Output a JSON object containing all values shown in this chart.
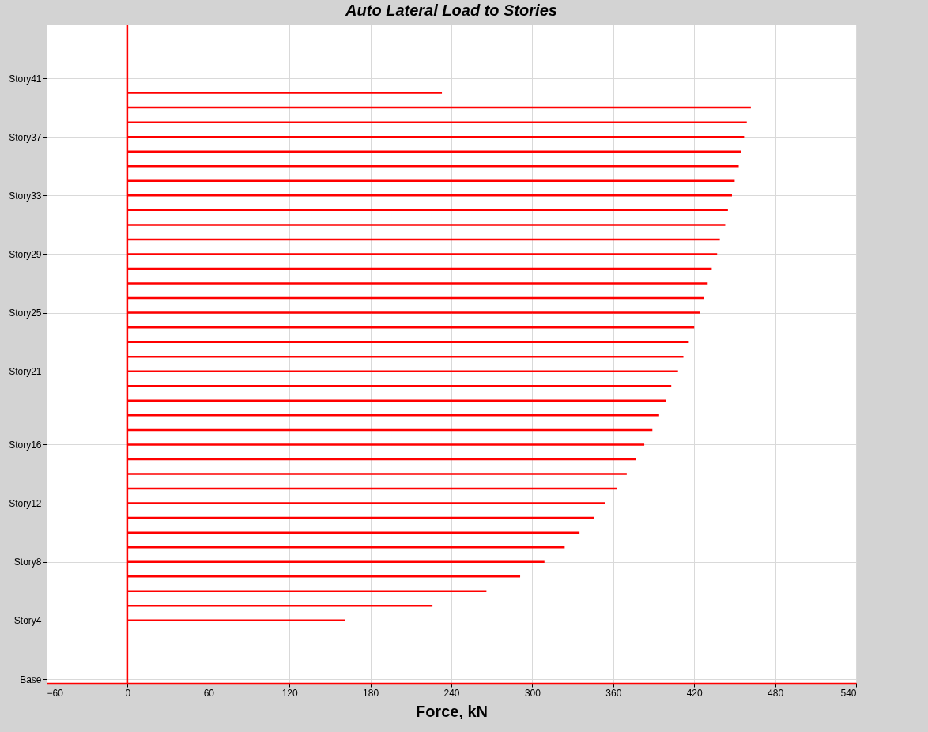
{
  "chart_data": {
    "type": "bar",
    "orientation": "horizontal",
    "title": "Auto Lateral Load to Stories",
    "xlabel": "Force, kN",
    "categories": [
      "Story41",
      null,
      null,
      null,
      "Story37",
      null,
      null,
      null,
      "Story33",
      null,
      null,
      null,
      "Story29",
      null,
      null,
      null,
      "Story25",
      null,
      null,
      null,
      "Story21",
      null,
      null,
      null,
      null,
      "Story16",
      null,
      null,
      null,
      "Story12",
      null,
      null,
      null,
      "Story8",
      null,
      null,
      null,
      "Story4",
      null,
      null,
      null,
      "Base"
    ],
    "series": [
      {
        "color": "#ff0000",
        "values": [
          null,
          233,
          462,
          459,
          457,
          455,
          453,
          450,
          448,
          445,
          443,
          439,
          437,
          433,
          430,
          427,
          424,
          420,
          416,
          412,
          408,
          403,
          399,
          394,
          389,
          383,
          377,
          370,
          363,
          354,
          346,
          335,
          324,
          309,
          291,
          266,
          226,
          161,
          null,
          null,
          null,
          null
        ]
      }
    ],
    "xlim": [
      -60,
      540
    ],
    "xticks": [
      -60,
      0,
      60,
      120,
      180,
      240,
      300,
      360,
      420,
      480,
      540
    ],
    "ref_lines": [
      {
        "axis": "x",
        "value": 0,
        "color": "#ff0000"
      }
    ],
    "grid": true
  }
}
